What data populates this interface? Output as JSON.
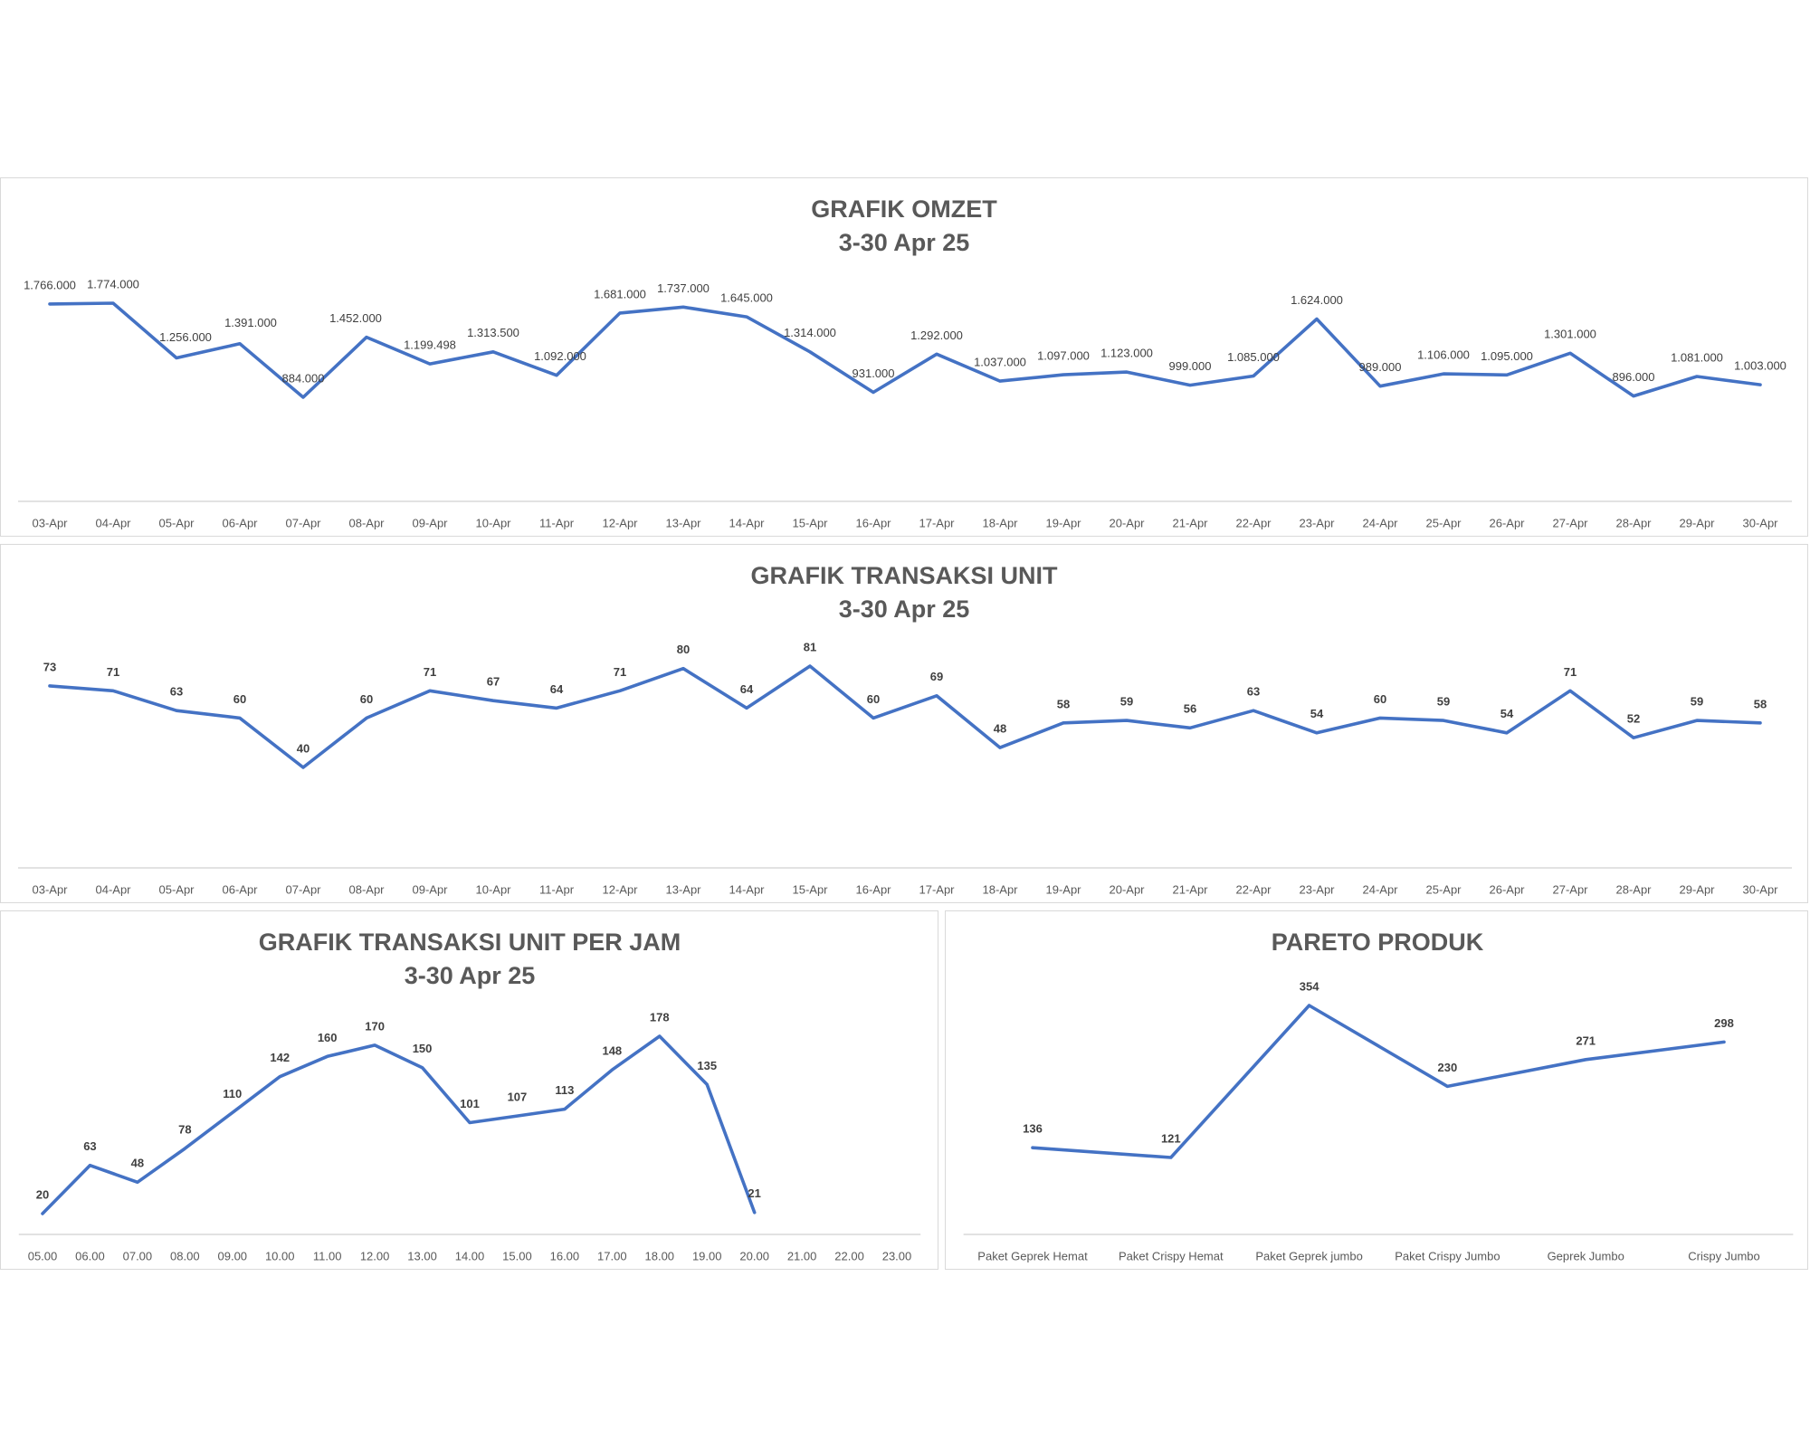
{
  "charts": [
    {
      "title": "GRAFIK OMZET",
      "subtitle": "3-30 Apr 25",
      "chart_data": {
        "type": "line",
        "categories": [
          "03-Apr",
          "04-Apr",
          "05-Apr",
          "06-Apr",
          "07-Apr",
          "08-Apr",
          "09-Apr",
          "10-Apr",
          "11-Apr",
          "12-Apr",
          "13-Apr",
          "14-Apr",
          "15-Apr",
          "16-Apr",
          "17-Apr",
          "18-Apr",
          "19-Apr",
          "20-Apr",
          "21-Apr",
          "22-Apr",
          "23-Apr",
          "24-Apr",
          "25-Apr",
          "26-Apr",
          "27-Apr",
          "28-Apr",
          "29-Apr",
          "30-Apr"
        ],
        "values": [
          1766000,
          1774000,
          1256000,
          1391000,
          884000,
          1452000,
          1199498,
          1313500,
          1092000,
          1681000,
          1737000,
          1645000,
          1314000,
          931000,
          1292000,
          1037000,
          1097000,
          1123000,
          999000,
          1085000,
          1624000,
          989000,
          1106000,
          1095000,
          1301000,
          896000,
          1081000,
          1003000
        ],
        "labels": [
          "1.766.000",
          "1.774.000",
          "1.256.000",
          "1.391.000",
          "884.000",
          "1.452.000",
          "1.199.498",
          "1.313.500",
          "1.092.000",
          "1.681.000",
          "1.737.000",
          "1.645.000",
          "1.314.000",
          "931.000",
          "1.292.000",
          "1.037.000",
          "1.097.000",
          "1.123.000",
          "999.000",
          "1.085.000",
          "1.624.000",
          "989.000",
          "1.106.000",
          "1.095.000",
          "1.301.000",
          "896.000",
          "1.081.000",
          "1.003.000"
        ],
        "color": "#4472c4",
        "xlabel": "",
        "ylabel": "",
        "grid": false
      }
    },
    {
      "title": "GRAFIK TRANSAKSI UNIT",
      "subtitle": "3-30 Apr 25",
      "chart_data": {
        "type": "line",
        "categories": [
          "03-Apr",
          "04-Apr",
          "05-Apr",
          "06-Apr",
          "07-Apr",
          "08-Apr",
          "09-Apr",
          "10-Apr",
          "11-Apr",
          "12-Apr",
          "13-Apr",
          "14-Apr",
          "15-Apr",
          "16-Apr",
          "17-Apr",
          "18-Apr",
          "19-Apr",
          "20-Apr",
          "21-Apr",
          "22-Apr",
          "23-Apr",
          "24-Apr",
          "25-Apr",
          "26-Apr",
          "27-Apr",
          "28-Apr",
          "29-Apr",
          "30-Apr"
        ],
        "values": [
          73,
          71,
          63,
          60,
          40,
          60,
          71,
          67,
          64,
          71,
          80,
          64,
          81,
          60,
          69,
          48,
          58,
          59,
          56,
          63,
          54,
          60,
          59,
          54,
          71,
          52,
          59,
          58
        ],
        "labels": [
          "73",
          "71",
          "63",
          "60",
          "40",
          "60",
          "71",
          "67",
          "64",
          "71",
          "80",
          "64",
          "81",
          "60",
          "69",
          "48",
          "58",
          "59",
          "56",
          "63",
          "54",
          "60",
          "59",
          "54",
          "71",
          "52",
          "59",
          "58"
        ],
        "color": "#4472c4",
        "xlabel": "",
        "ylabel": "",
        "grid": false
      }
    },
    {
      "title": "GRAFIK TRANSAKSI UNIT PER JAM",
      "subtitle": "3-30 Apr 25",
      "chart_data": {
        "type": "line",
        "categories": [
          "05.00",
          "06.00",
          "07.00",
          "08.00",
          "09.00",
          "10.00",
          "11.00",
          "12.00",
          "13.00",
          "14.00",
          "15.00",
          "16.00",
          "17.00",
          "18.00",
          "19.00",
          "20.00",
          "21.00",
          "22.00",
          "23.00"
        ],
        "values": [
          20,
          63,
          48,
          78,
          110,
          142,
          160,
          170,
          150,
          101,
          107,
          113,
          148,
          178,
          135,
          21,
          null,
          null,
          null
        ],
        "labels": [
          "20",
          "63",
          "48",
          "78",
          "110",
          "142",
          "160",
          "170",
          "150",
          "101",
          "107",
          "113",
          "148",
          "178",
          "135",
          "21",
          "",
          "",
          ""
        ],
        "color": "#4472c4",
        "xlabel": "",
        "ylabel": "",
        "grid": false
      }
    },
    {
      "title": "PARETO PRODUK",
      "subtitle": "",
      "chart_data": {
        "type": "line",
        "categories": [
          "Paket Geprek Hemat",
          "Paket Crispy Hemat",
          "Paket Geprek jumbo",
          "Paket Crispy Jumbo",
          "Geprek Jumbo",
          "Crispy Jumbo"
        ],
        "values": [
          136,
          121,
          354,
          230,
          271,
          298
        ],
        "labels": [
          "136",
          "121",
          "354",
          "230",
          "271",
          "298"
        ],
        "color": "#4472c4",
        "xlabel": "",
        "ylabel": "",
        "grid": false
      }
    }
  ]
}
